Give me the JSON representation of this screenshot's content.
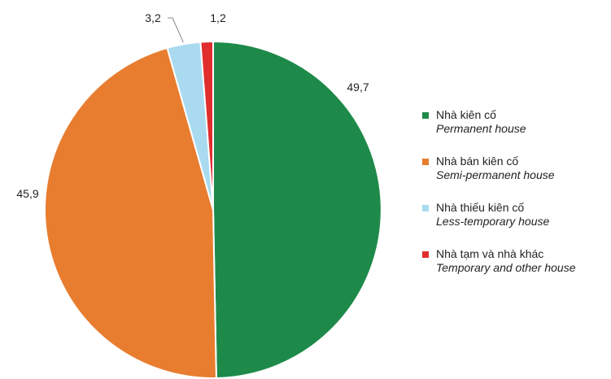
{
  "chart_data": {
    "type": "pie",
    "start_angle_deg": 0,
    "direction": "clockwise",
    "slices": [
      {
        "label_vi": "Nhà kiên cố",
        "label_en": "Permanent house",
        "value": 49.7,
        "value_label": "49,7",
        "color": "#1e8a4a"
      },
      {
        "label_vi": "Nhà bán kiên cố",
        "label_en": "Semi-permanent house",
        "value": 45.9,
        "value_label": "45,9",
        "color": "#e87d2f"
      },
      {
        "label_vi": "Nhà thiếu kiên cố",
        "label_en": "Less-temporary house",
        "value": 3.2,
        "value_label": "3,2",
        "color": "#a9daf0"
      },
      {
        "label_vi": "Nhà tạm và nhà khác",
        "label_en": "Temporary and other house",
        "value": 1.2,
        "value_label": "1,2",
        "color": "#e02e2e"
      }
    ],
    "legend_position": "right"
  }
}
